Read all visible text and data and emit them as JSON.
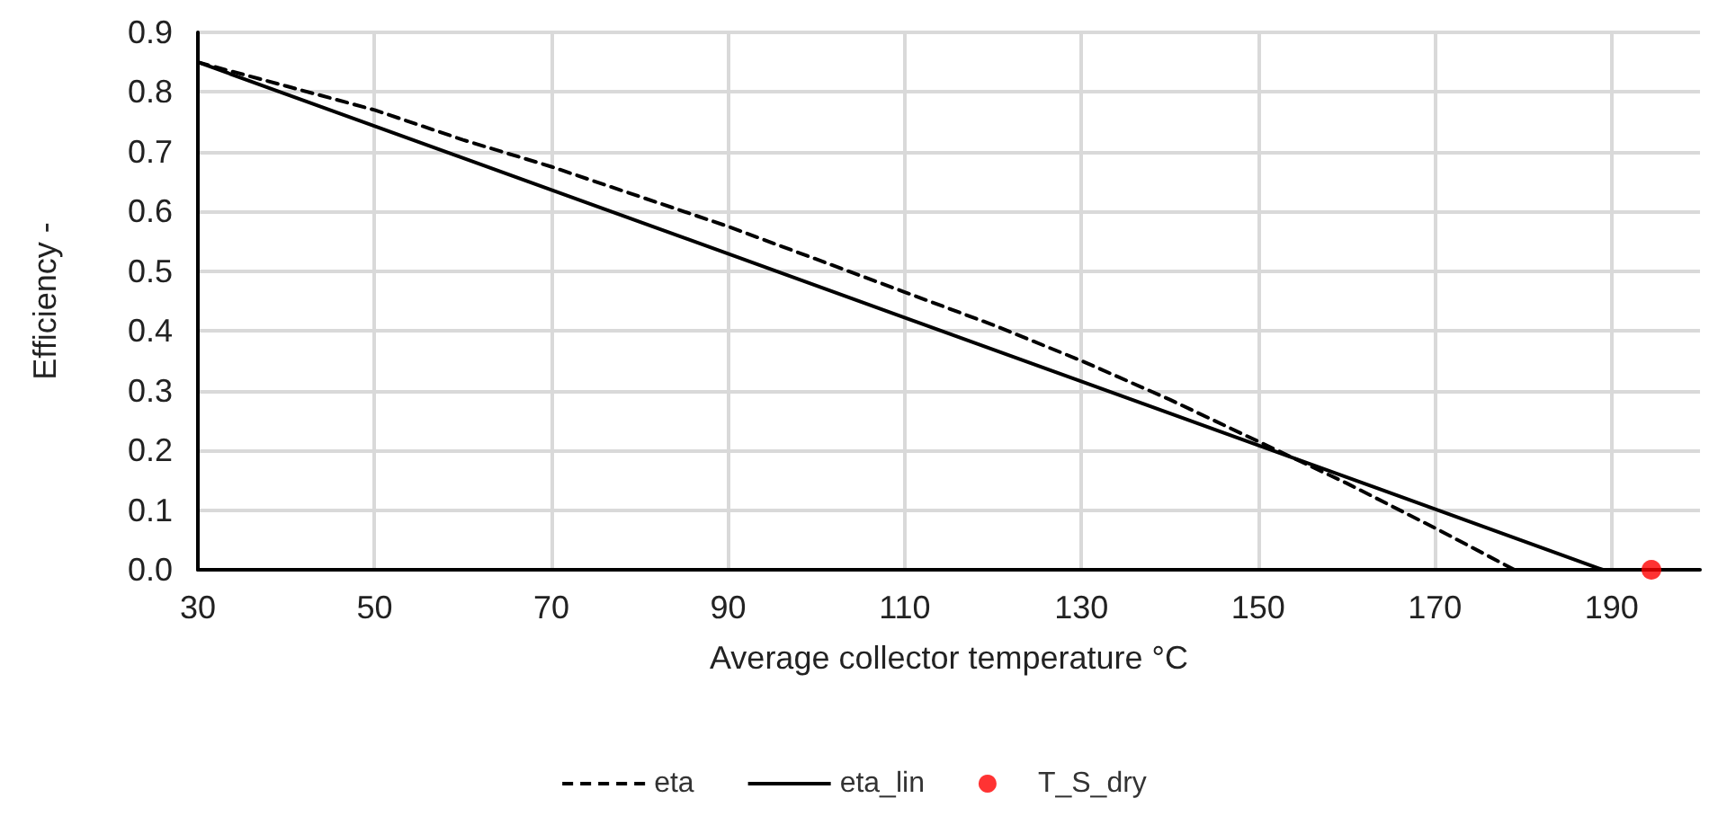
{
  "chart_data": {
    "type": "line",
    "xlabel": "Average collector temperature °C",
    "ylabel": "Efficiency -",
    "xlim": [
      30,
      200
    ],
    "xticks": [
      30,
      50,
      70,
      90,
      110,
      130,
      150,
      170,
      190
    ],
    "ylim": [
      0,
      0.9
    ],
    "yticks": [
      {
        "value": 0,
        "label": "0.0"
      },
      0.1,
      0.2,
      0.3,
      0.4,
      0.5,
      0.6,
      0.7,
      0.8,
      0.9
    ],
    "grid": true,
    "legend": "bottom",
    "series": [
      {
        "name": "eta",
        "color": "#000000",
        "line_style": "dashed",
        "marker": "none",
        "x": [
          30,
          40,
          50,
          60,
          70,
          80,
          90,
          100,
          110,
          120,
          130,
          140,
          150,
          160,
          170,
          179
        ],
        "values": [
          0.85,
          0.81,
          0.77,
          0.72,
          0.675,
          0.625,
          0.575,
          0.52,
          0.465,
          0.41,
          0.35,
          0.285,
          0.215,
          0.145,
          0.07,
          0
        ]
      },
      {
        "name": "eta_lin",
        "color": "#000000",
        "line_style": "solid",
        "marker": "none",
        "x": [
          30,
          189
        ],
        "values": [
          0.85,
          0
        ]
      },
      {
        "name": "T_S_dry",
        "type": "scatter",
        "color": "#ff0000",
        "marker": "circle",
        "x": [
          194.5
        ],
        "values": [
          0
        ]
      }
    ]
  }
}
